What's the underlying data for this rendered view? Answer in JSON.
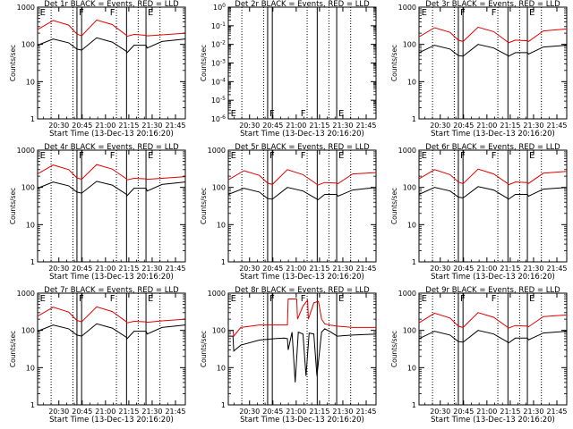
{
  "figure": {
    "xticks": [
      "20:30",
      "20:45",
      "21:00",
      "21:15",
      "21:30",
      "21:45"
    ],
    "xlabel": "Start Time (13-Dec-13 20:16:20)",
    "ylabel": "Counts/sec",
    "colors": {
      "events": "#000000",
      "lld": "#e00000",
      "axis": "#000000",
      "dotted": "#000000"
    },
    "dotted_vlines_min": [
      8.7,
      22.7,
      50.7,
      64.7,
      78.7
    ],
    "solid_vlines_min": [
      25.3,
      28.3,
      57.2,
      69.7
    ]
  },
  "chart_data": [
    {
      "type": "line",
      "title": "Det 1r BLACK = Events, RED = LLD",
      "yscale": "log",
      "ylim": [
        1,
        1000
      ],
      "yticks": [
        "1",
        "10",
        "100",
        "1000"
      ],
      "xlim_min": [
        0,
        95
      ],
      "flags": [
        {
          "t": 1.5,
          "label": "E"
        },
        {
          "t": 26.5,
          "label": "F"
        },
        {
          "t": 46.5,
          "label": "F"
        },
        {
          "t": 70.8,
          "label": "E"
        }
      ],
      "series": [
        {
          "name": "Events",
          "x": [
            0,
            10,
            20,
            25.3,
            28.3,
            38,
            48,
            57.2,
            57.6,
            62,
            69.7,
            70.5,
            80,
            95
          ],
          "y": [
            95,
            140,
            110,
            75,
            70,
            150,
            115,
            65,
            60,
            95,
            95,
            80,
            120,
            140
          ]
        },
        {
          "name": "LLD",
          "x": [
            0,
            10,
            20,
            25.3,
            28.3,
            38,
            48,
            57.2,
            57.6,
            62,
            69.7,
            70.5,
            80,
            95
          ],
          "y": [
            250,
            440,
            330,
            190,
            170,
            450,
            340,
            175,
            165,
            185,
            175,
            170,
            180,
            200
          ]
        }
      ]
    },
    {
      "type": "line",
      "title": "Det 2r BLACK = Events, RED = LLD",
      "yscale": "log",
      "ylim": [
        1e-06,
        1
      ],
      "yticks": [
        "10^-6",
        "10^-5",
        "10^-4",
        "10^-3",
        "10^-2",
        "10^-1",
        "10^0"
      ],
      "xlim_min": [
        0,
        95
      ],
      "flags": [
        {
          "t": 1.5,
          "label": "E"
        },
        {
          "t": 26.5,
          "label": "F"
        },
        {
          "t": 46.5,
          "label": "F"
        },
        {
          "t": 70.8,
          "label": "E"
        }
      ],
      "series": []
    },
    {
      "type": "line",
      "title": "Det 3r BLACK = Events, RED = LLD",
      "yscale": "log",
      "ylim": [
        1,
        1000
      ],
      "yticks": [
        "1",
        "10",
        "100",
        "1000"
      ],
      "xlim_min": [
        0,
        95
      ],
      "flags": [
        {
          "t": 1.5,
          "label": "E"
        },
        {
          "t": 26.5,
          "label": "F"
        },
        {
          "t": 46.5,
          "label": "F"
        },
        {
          "t": 70.8,
          "label": "E"
        }
      ],
      "series": [
        {
          "name": "Events",
          "x": [
            0,
            10,
            20,
            25.3,
            28.3,
            38,
            48,
            57.2,
            57.6,
            62,
            69.7,
            70.5,
            80,
            95
          ],
          "y": [
            60,
            95,
            75,
            50,
            48,
            100,
            80,
            50,
            48,
            60,
            60,
            55,
            85,
            95
          ]
        },
        {
          "name": "LLD",
          "x": [
            0,
            10,
            20,
            25.3,
            28.3,
            38,
            48,
            57.2,
            57.6,
            62,
            69.7,
            70.5,
            80,
            95
          ],
          "y": [
            160,
            280,
            210,
            130,
            120,
            290,
            220,
            115,
            110,
            130,
            125,
            120,
            230,
            260
          ]
        }
      ]
    },
    {
      "type": "line",
      "title": "Det 4r BLACK = Events, RED = LLD",
      "yscale": "log",
      "ylim": [
        1,
        1000
      ],
      "yticks": [
        "1",
        "10",
        "100",
        "1000"
      ],
      "xlim_min": [
        0,
        95
      ],
      "flags": [
        {
          "t": 1.5,
          "label": "E"
        },
        {
          "t": 26.5,
          "label": "F"
        },
        {
          "t": 46.5,
          "label": "F"
        },
        {
          "t": 70.8,
          "label": "E"
        }
      ],
      "series": [
        {
          "name": "Events",
          "x": [
            0,
            10,
            20,
            25.3,
            28.3,
            38,
            48,
            57.2,
            57.6,
            62,
            69.7,
            70.5,
            80,
            95
          ],
          "y": [
            95,
            140,
            110,
            75,
            70,
            145,
            115,
            65,
            60,
            95,
            95,
            80,
            120,
            140
          ]
        },
        {
          "name": "LLD",
          "x": [
            0,
            10,
            20,
            25.3,
            28.3,
            38,
            48,
            57.2,
            57.6,
            62,
            69.7,
            70.5,
            80,
            95
          ],
          "y": [
            230,
            400,
            300,
            180,
            165,
            410,
            310,
            170,
            160,
            175,
            170,
            165,
            175,
            195
          ]
        }
      ]
    },
    {
      "type": "line",
      "title": "Det 5r BLACK = Events, RED = LLD",
      "yscale": "log",
      "ylim": [
        1,
        1000
      ],
      "yticks": [
        "1",
        "10",
        "100",
        "1000"
      ],
      "xlim_min": [
        0,
        95
      ],
      "flags": [
        {
          "t": 1.5,
          "label": "E"
        },
        {
          "t": 26.5,
          "label": "F"
        },
        {
          "t": 46.5,
          "label": "F"
        },
        {
          "t": 70.8,
          "label": "E"
        }
      ],
      "series": [
        {
          "name": "Events",
          "x": [
            0,
            10,
            20,
            25.3,
            28.3,
            38,
            48,
            57.2,
            57.6,
            62,
            69.7,
            70.5,
            80,
            95
          ],
          "y": [
            65,
            95,
            75,
            50,
            48,
            100,
            80,
            48,
            46,
            65,
            65,
            58,
            85,
            100
          ]
        },
        {
          "name": "LLD",
          "x": [
            0,
            10,
            20,
            25.3,
            28.3,
            38,
            48,
            57.2,
            57.6,
            62,
            69.7,
            70.5,
            80,
            95
          ],
          "y": [
            160,
            280,
            210,
            130,
            120,
            300,
            220,
            120,
            115,
            135,
            130,
            125,
            230,
            250
          ]
        }
      ]
    },
    {
      "type": "line",
      "title": "Det 6r BLACK = Events, RED = LLD",
      "yscale": "log",
      "ylim": [
        1,
        1000
      ],
      "yticks": [
        "1",
        "10",
        "100",
        "1000"
      ],
      "xlim_min": [
        0,
        95
      ],
      "flags": [
        {
          "t": 1.5,
          "label": "E"
        },
        {
          "t": 26.5,
          "label": "F"
        },
        {
          "t": 46.5,
          "label": "F"
        },
        {
          "t": 70.8,
          "label": "E"
        }
      ],
      "series": [
        {
          "name": "Events",
          "x": [
            0,
            10,
            20,
            25.3,
            28.3,
            38,
            48,
            57.2,
            57.6,
            62,
            69.7,
            70.5,
            80,
            95
          ],
          "y": [
            65,
            100,
            80,
            55,
            52,
            105,
            85,
            50,
            48,
            65,
            65,
            58,
            90,
            100
          ]
        },
        {
          "name": "LLD",
          "x": [
            0,
            10,
            20,
            25.3,
            28.3,
            38,
            48,
            57.2,
            57.6,
            62,
            69.7,
            70.5,
            80,
            95
          ],
          "y": [
            170,
            300,
            220,
            140,
            125,
            310,
            230,
            125,
            118,
            140,
            135,
            128,
            240,
            270
          ]
        }
      ]
    },
    {
      "type": "line",
      "title": "Det 7r BLACK = Events, RED = LLD",
      "yscale": "log",
      "ylim": [
        1,
        1000
      ],
      "yticks": [
        "1",
        "10",
        "100",
        "1000"
      ],
      "xlim_min": [
        0,
        95
      ],
      "flags": [
        {
          "t": 1.5,
          "label": "E"
        },
        {
          "t": 26.5,
          "label": "F"
        },
        {
          "t": 46.5,
          "label": "F"
        },
        {
          "t": 70.8,
          "label": "E"
        }
      ],
      "series": [
        {
          "name": "Events",
          "x": [
            0,
            10,
            20,
            25.3,
            28.3,
            38,
            48,
            57.2,
            57.6,
            62,
            69.7,
            70.5,
            80,
            95
          ],
          "y": [
            95,
            140,
            110,
            75,
            70,
            150,
            115,
            65,
            60,
            95,
            95,
            80,
            120,
            140
          ]
        },
        {
          "name": "LLD",
          "x": [
            0,
            10,
            20,
            25.3,
            28.3,
            38,
            48,
            57.2,
            57.6,
            62,
            69.7,
            70.5,
            80,
            95
          ],
          "y": [
            240,
            420,
            310,
            185,
            170,
            430,
            320,
            170,
            160,
            175,
            170,
            165,
            180,
            200
          ]
        }
      ]
    },
    {
      "type": "line",
      "title": "Det 8r BLACK = Events, RED = LLD",
      "yscale": "log",
      "ylim": [
        1,
        1000
      ],
      "yticks": [
        "1",
        "10",
        "100",
        "1000"
      ],
      "xlim_min": [
        0,
        95
      ],
      "flags": [
        {
          "t": 1.5,
          "label": "E"
        },
        {
          "t": 26.5,
          "label": "F"
        },
        {
          "t": 46.5,
          "label": "F"
        },
        {
          "t": 70.8,
          "label": "E"
        }
      ],
      "series": [
        {
          "name": "Events",
          "x": [
            0,
            3,
            3.5,
            8,
            20,
            30,
            36,
            38,
            38.5,
            41,
            43,
            45,
            48,
            50,
            52,
            55,
            57,
            60,
            62,
            65,
            70,
            80,
            95
          ],
          "y": [
            70,
            70,
            28,
            40,
            55,
            60,
            62,
            60,
            30,
            90,
            4,
            90,
            80,
            6,
            85,
            80,
            6,
            90,
            110,
            95,
            70,
            75,
            80
          ]
        },
        {
          "name": "LLD",
          "x": [
            0,
            3,
            3.5,
            8,
            20,
            30,
            35,
            38,
            38.5,
            44,
            44.5,
            48,
            51,
            51.5,
            55,
            58,
            60,
            62,
            65,
            70,
            80,
            95
          ],
          "y": [
            100,
            100,
            70,
            120,
            140,
            140,
            140,
            140,
            700,
            700,
            200,
            450,
            650,
            200,
            550,
            600,
            200,
            150,
            140,
            130,
            120,
            120
          ]
        }
      ]
    },
    {
      "type": "line",
      "title": "Det 9r BLACK = Events, RED = LLD",
      "yscale": "log",
      "ylim": [
        1,
        1000
      ],
      "yticks": [
        "1",
        "10",
        "100",
        "1000"
      ],
      "xlim_min": [
        0,
        95
      ],
      "flags": [
        {
          "t": 1.5,
          "label": "E"
        },
        {
          "t": 26.5,
          "label": "F"
        },
        {
          "t": 46.5,
          "label": "F"
        },
        {
          "t": 70.8,
          "label": "E"
        }
      ],
      "series": [
        {
          "name": "Events",
          "x": [
            0,
            10,
            20,
            25.3,
            28.3,
            38,
            48,
            57.2,
            57.6,
            62,
            69.7,
            70.5,
            80,
            95
          ],
          "y": [
            60,
            95,
            75,
            50,
            48,
            100,
            80,
            48,
            46,
            62,
            62,
            56,
            85,
            95
          ]
        },
        {
          "name": "LLD",
          "x": [
            0,
            10,
            20,
            25.3,
            28.3,
            38,
            48,
            57.2,
            57.6,
            62,
            69.7,
            70.5,
            80,
            95
          ],
          "y": [
            160,
            290,
            215,
            130,
            120,
            300,
            225,
            120,
            115,
            135,
            130,
            125,
            235,
            260
          ]
        }
      ]
    }
  ]
}
